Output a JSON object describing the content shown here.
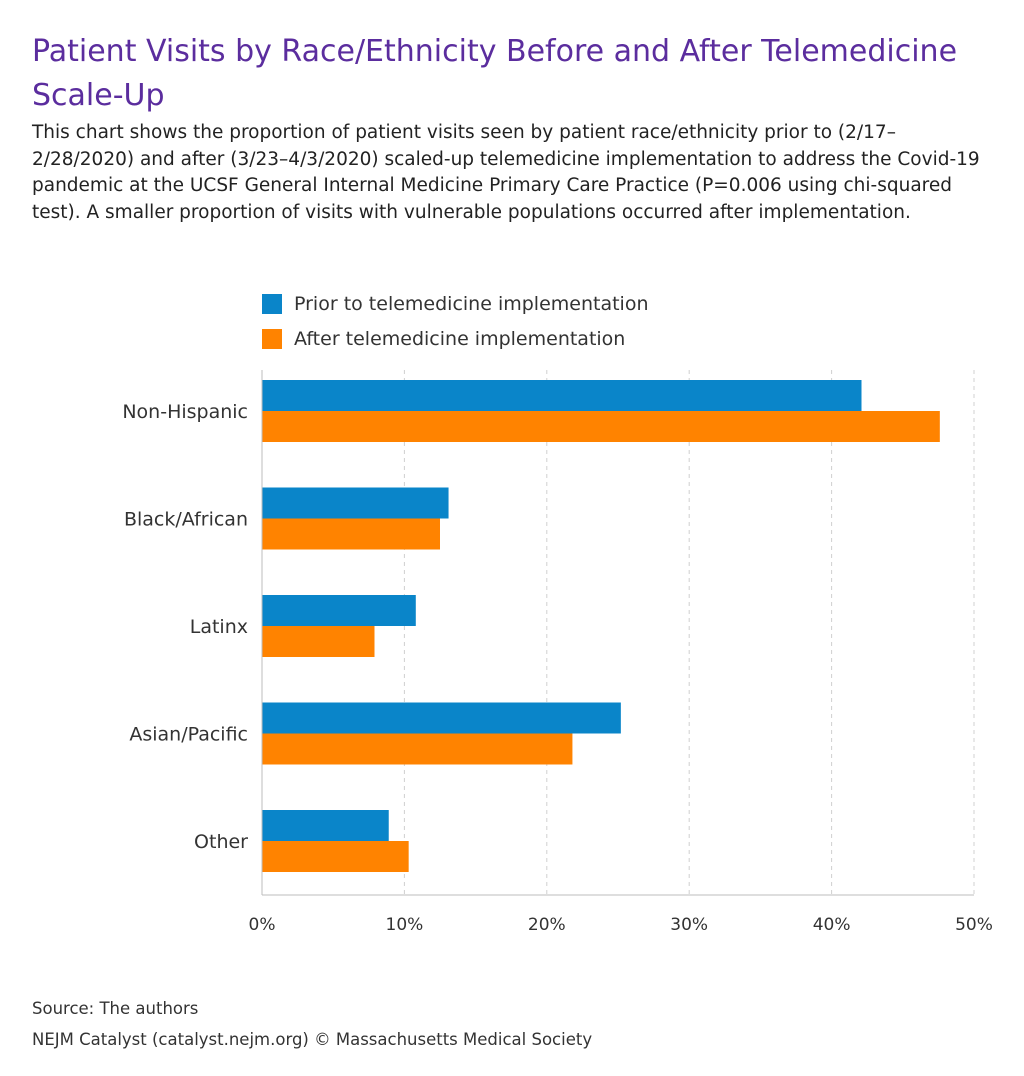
{
  "header": {
    "title": "Patient Visits by Race/Ethnicity Before and After Telemedicine Scale-Up",
    "subtitle": "This chart shows the proportion of patient visits seen by patient race/ethnicity prior to (2/17–2/28/2020) and after (3/23–4/3/2020) scaled-up telemedicine implementation to address the Covid-19 pandemic at the UCSF General Internal Medicine Primary Care Practice (P=0.006 using chi-squared test). A smaller proportion of visits with vulnerable populations occurred after implementation."
  },
  "colors": {
    "prior": "#0a85c9",
    "after": "#ff8300",
    "title": "#5b2d9e",
    "grid": "#d0d0d0"
  },
  "chart_data": {
    "type": "bar",
    "orientation": "horizontal",
    "title": "Patient Visits by Race/Ethnicity Before and After Telemedicine Scale-Up",
    "categories": [
      "Non-Hispanic",
      "Black/African",
      "Latinx",
      "Asian/Pacific",
      "Other"
    ],
    "series": [
      {
        "name": "Prior to telemedicine implementation",
        "color": "#0a85c9",
        "values": [
          42.1,
          13.1,
          10.8,
          25.2,
          8.9
        ]
      },
      {
        "name": "After telemedicine implementation",
        "color": "#ff8300",
        "values": [
          47.6,
          12.5,
          7.9,
          21.8,
          10.3
        ]
      }
    ],
    "xlim": [
      0,
      50
    ],
    "xticks": [
      0,
      10,
      20,
      30,
      40,
      50
    ],
    "xtick_labels": [
      "0%",
      "10%",
      "20%",
      "30%",
      "40%",
      "50%"
    ],
    "xlabel": "",
    "ylabel": "",
    "grid": true,
    "legend_position": "top"
  },
  "footer": {
    "source": "Source: The authors",
    "credit": "NEJM Catalyst (catalyst.nejm.org) © Massachusetts Medical Society"
  }
}
